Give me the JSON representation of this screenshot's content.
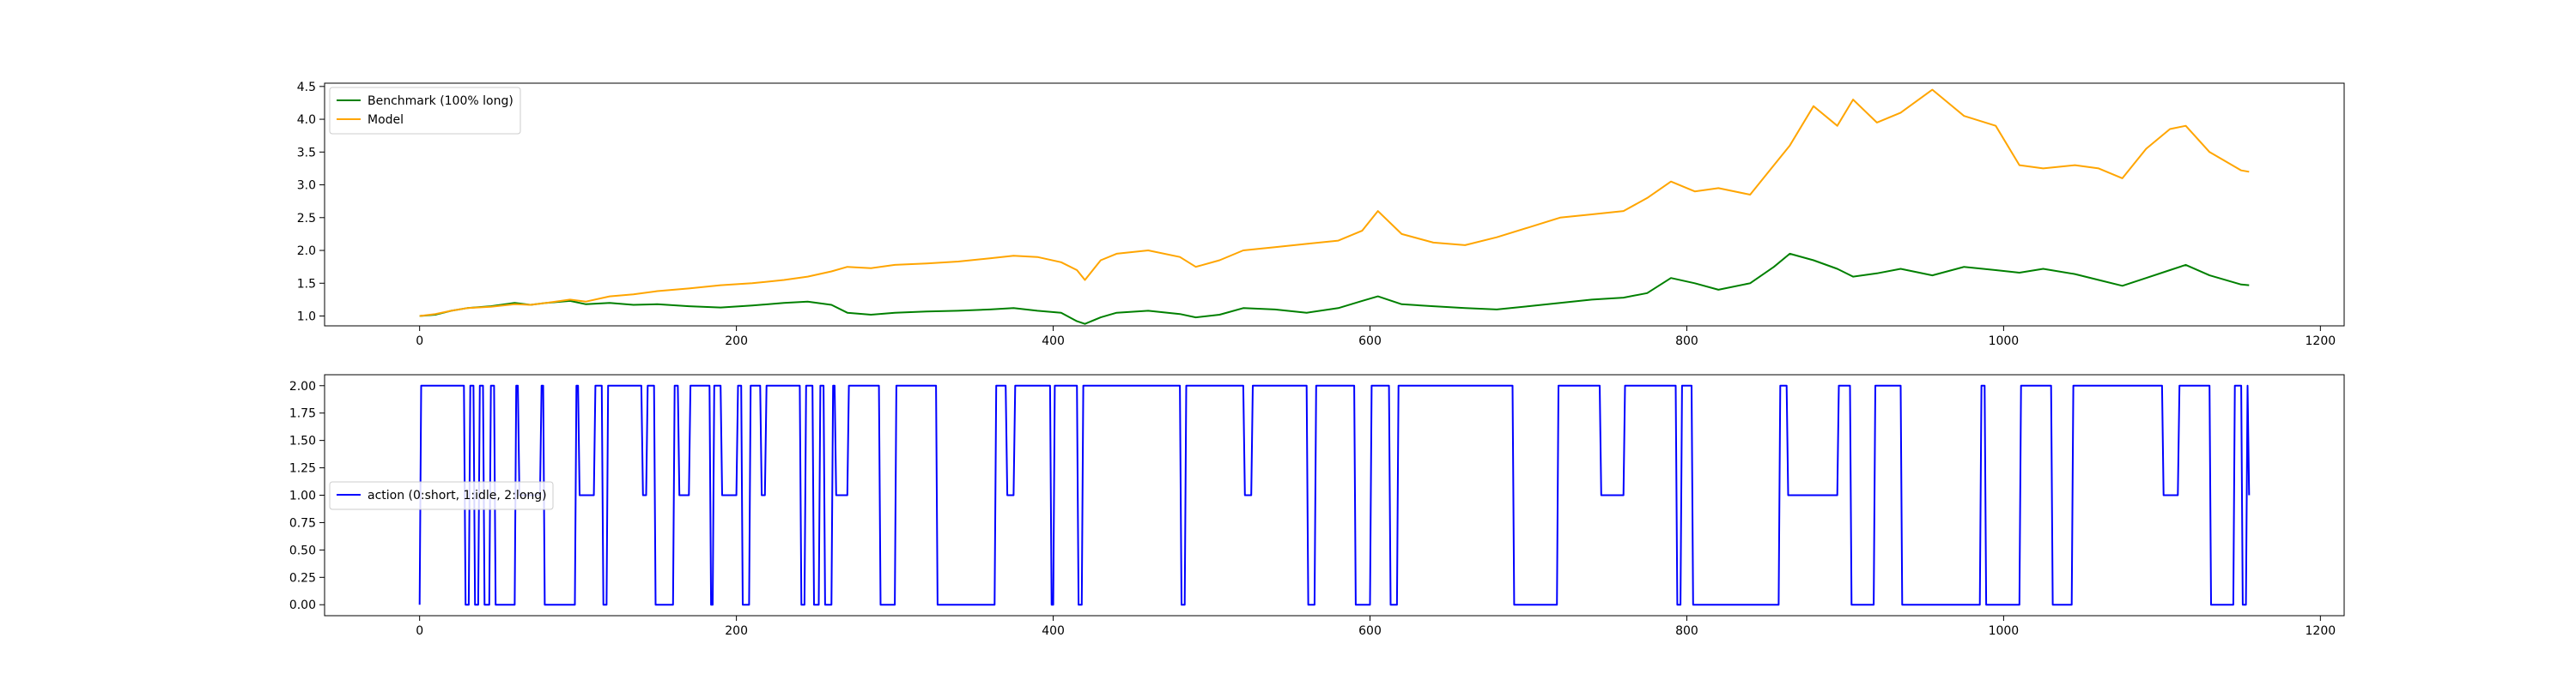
{
  "chart_data": [
    {
      "type": "line",
      "xlim": [
        -60,
        1215
      ],
      "ylim": [
        0.85,
        4.55
      ],
      "xticks": [
        0,
        200,
        400,
        600,
        800,
        1000,
        1200
      ],
      "yticks": [
        1.0,
        1.5,
        2.0,
        2.5,
        3.0,
        3.5,
        4.0,
        4.5
      ],
      "xtick_labels": [
        "0",
        "200",
        "400",
        "600",
        "800",
        "1000",
        "1200"
      ],
      "ytick_labels": [
        "1.0",
        "1.5",
        "2.0",
        "2.5",
        "3.0",
        "3.5",
        "4.0",
        "4.5"
      ],
      "grid": false,
      "legend_placement": "upper-left",
      "series": [
        {
          "name": "Benchmark (100% long)",
          "color": "#008000",
          "x": [
            0,
            10,
            20,
            30,
            45,
            60,
            70,
            80,
            95,
            105,
            120,
            135,
            150,
            170,
            190,
            210,
            230,
            245,
            260,
            270,
            285,
            300,
            320,
            340,
            360,
            375,
            390,
            405,
            415,
            420,
            430,
            440,
            460,
            480,
            490,
            505,
            520,
            540,
            560,
            580,
            595,
            605,
            620,
            640,
            660,
            680,
            700,
            720,
            740,
            760,
            775,
            790,
            805,
            820,
            840,
            855,
            865,
            880,
            895,
            905,
            920,
            935,
            955,
            975,
            995,
            1010,
            1025,
            1045,
            1060,
            1075,
            1090,
            1105,
            1115,
            1130,
            1150,
            1155
          ],
          "y": [
            1.0,
            1.02,
            1.08,
            1.12,
            1.15,
            1.2,
            1.17,
            1.2,
            1.23,
            1.18,
            1.2,
            1.17,
            1.18,
            1.15,
            1.13,
            1.16,
            1.2,
            1.22,
            1.17,
            1.05,
            1.02,
            1.05,
            1.07,
            1.08,
            1.1,
            1.12,
            1.08,
            1.05,
            0.92,
            0.88,
            0.98,
            1.05,
            1.08,
            1.03,
            0.98,
            1.02,
            1.12,
            1.1,
            1.05,
            1.12,
            1.23,
            1.3,
            1.18,
            1.15,
            1.12,
            1.1,
            1.15,
            1.2,
            1.25,
            1.28,
            1.35,
            1.58,
            1.5,
            1.4,
            1.5,
            1.75,
            1.95,
            1.85,
            1.72,
            1.6,
            1.65,
            1.72,
            1.62,
            1.75,
            1.7,
            1.66,
            1.72,
            1.64,
            1.55,
            1.46,
            1.58,
            1.7,
            1.78,
            1.62,
            1.48,
            1.47
          ]
        },
        {
          "name": "Model",
          "color": "#FFA500",
          "x": [
            0,
            10,
            20,
            30,
            45,
            60,
            70,
            80,
            95,
            105,
            120,
            135,
            150,
            170,
            190,
            210,
            230,
            245,
            260,
            270,
            285,
            300,
            320,
            340,
            360,
            375,
            390,
            405,
            415,
            420,
            430,
            440,
            460,
            480,
            490,
            505,
            520,
            540,
            560,
            580,
            595,
            605,
            620,
            640,
            660,
            680,
            700,
            720,
            740,
            760,
            775,
            790,
            805,
            820,
            840,
            855,
            865,
            880,
            895,
            905,
            920,
            935,
            955,
            975,
            995,
            1010,
            1025,
            1045,
            1060,
            1075,
            1090,
            1105,
            1115,
            1130,
            1150,
            1155
          ],
          "y": [
            1.0,
            1.03,
            1.08,
            1.12,
            1.14,
            1.18,
            1.17,
            1.2,
            1.25,
            1.22,
            1.3,
            1.33,
            1.38,
            1.42,
            1.47,
            1.5,
            1.55,
            1.6,
            1.68,
            1.75,
            1.73,
            1.78,
            1.8,
            1.83,
            1.88,
            1.92,
            1.9,
            1.82,
            1.7,
            1.55,
            1.85,
            1.95,
            2.0,
            1.9,
            1.75,
            1.85,
            2.0,
            2.05,
            2.1,
            2.15,
            2.3,
            2.6,
            2.25,
            2.12,
            2.08,
            2.2,
            2.35,
            2.5,
            2.55,
            2.6,
            2.8,
            3.05,
            2.9,
            2.95,
            2.85,
            3.3,
            3.6,
            4.2,
            3.9,
            4.3,
            3.95,
            4.1,
            4.45,
            4.05,
            3.9,
            3.3,
            3.25,
            3.3,
            3.25,
            3.1,
            3.55,
            3.85,
            3.9,
            3.5,
            3.22,
            3.2
          ]
        }
      ]
    },
    {
      "type": "line",
      "xlim": [
        -60,
        1215
      ],
      "ylim": [
        -0.1,
        2.1
      ],
      "xticks": [
        0,
        200,
        400,
        600,
        800,
        1000,
        1200
      ],
      "yticks": [
        0.0,
        0.25,
        0.5,
        0.75,
        1.0,
        1.25,
        1.5,
        1.75,
        2.0
      ],
      "xtick_labels": [
        "0",
        "200",
        "400",
        "600",
        "800",
        "1000",
        "1200"
      ],
      "ytick_labels": [
        "0.00",
        "0.25",
        "0.50",
        "0.75",
        "1.00",
        "1.25",
        "1.50",
        "1.75",
        "2.00"
      ],
      "grid": false,
      "legend_placement": "center-left",
      "series": [
        {
          "name": "action (0:short, 1:idle, 2:long)",
          "color": "#0000FF",
          "x": [
            0,
            1,
            28,
            29,
            31,
            32,
            34,
            35,
            37,
            38,
            40,
            41,
            44,
            45,
            47,
            48,
            60,
            61,
            62,
            63,
            76,
            77,
            78,
            79,
            98,
            99,
            100,
            101,
            110,
            111,
            115,
            116,
            118,
            119,
            140,
            141,
            143,
            144,
            148,
            149,
            160,
            161,
            163,
            164,
            170,
            171,
            183,
            184,
            185,
            186,
            190,
            191,
            200,
            201,
            203,
            204,
            208,
            209,
            215,
            216,
            218,
            219,
            240,
            241,
            243,
            244,
            248,
            249,
            252,
            253,
            255,
            256,
            260,
            261,
            262,
            263,
            270,
            271,
            290,
            291,
            300,
            301,
            326,
            327,
            363,
            364,
            370,
            371,
            375,
            376,
            398,
            399,
            400,
            401,
            415,
            416,
            418,
            419,
            480,
            481,
            483,
            484,
            520,
            521,
            525,
            526,
            560,
            561,
            565,
            566,
            590,
            591,
            600,
            601,
            612,
            613,
            617,
            618,
            690,
            691,
            718,
            719,
            745,
            746,
            760,
            761,
            793,
            794,
            796,
            797,
            803,
            804,
            858,
            859,
            863,
            864,
            895,
            896,
            903,
            904,
            918,
            919,
            935,
            936,
            985,
            986,
            988,
            989,
            1010,
            1011,
            1030,
            1031,
            1043,
            1044,
            1100,
            1101,
            1110,
            1111,
            1130,
            1131,
            1145,
            1146,
            1150,
            1151,
            1153,
            1154,
            1155
          ],
          "y": [
            0,
            2,
            2,
            0,
            0,
            2,
            2,
            0,
            0,
            2,
            2,
            0,
            0,
            2,
            2,
            0,
            0,
            2,
            2,
            1,
            1,
            2,
            2,
            0,
            0,
            2,
            2,
            1,
            1,
            2,
            2,
            0,
            0,
            2,
            2,
            1,
            1,
            2,
            2,
            0,
            0,
            2,
            2,
            1,
            1,
            2,
            2,
            0,
            0,
            2,
            2,
            1,
            1,
            2,
            2,
            0,
            0,
            2,
            2,
            1,
            1,
            2,
            2,
            0,
            0,
            2,
            2,
            0,
            0,
            2,
            2,
            0,
            0,
            2,
            2,
            1,
            1,
            2,
            2,
            0,
            0,
            2,
            2,
            0,
            0,
            2,
            2,
            1,
            1,
            2,
            2,
            0,
            0,
            2,
            2,
            0,
            0,
            2,
            2,
            0,
            0,
            2,
            2,
            1,
            1,
            2,
            2,
            0,
            0,
            2,
            2,
            0,
            0,
            2,
            2,
            0,
            0,
            2,
            2,
            0,
            0,
            2,
            2,
            1,
            1,
            2,
            2,
            0,
            0,
            2,
            2,
            0,
            0,
            2,
            2,
            1,
            1,
            2,
            2,
            0,
            0,
            2,
            2,
            0,
            0,
            2,
            2,
            0,
            0,
            2,
            2,
            0,
            0,
            2,
            2,
            1,
            1,
            2,
            2,
            0,
            0,
            2,
            2,
            0,
            0,
            2,
            1
          ]
        }
      ]
    }
  ]
}
